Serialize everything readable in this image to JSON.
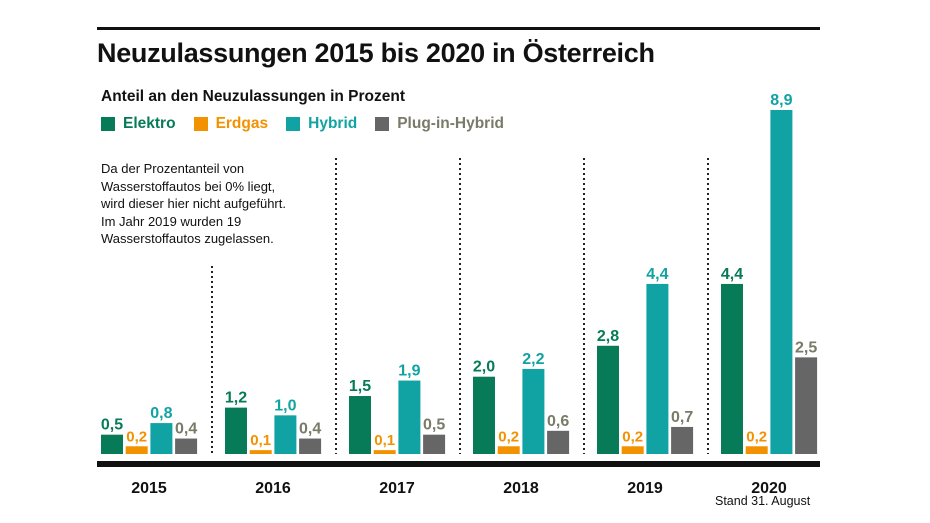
{
  "title": "Neuzulassungen 2015 bis 2020 in Österreich",
  "subtitle": "Anteil an den Neuzulassungen in Prozent",
  "note": [
    "Da der Prozentanteil von",
    "Wasserstoffautos bei 0% liegt,",
    "wird dieser hier nicht aufgeführt.",
    "Im Jahr 2019 wurden 19",
    "Wasserstoffautos zugelassen."
  ],
  "footnote": "Stand 31. August",
  "chart_data": {
    "type": "bar",
    "title": "Neuzulassungen 2015 bis 2020 in Österreich",
    "ylabel": "Anteil an den Neuzulassungen in Prozent",
    "categories": [
      "2015",
      "2016",
      "2017",
      "2018",
      "2019",
      "2020"
    ],
    "ylim": [
      0,
      8.9
    ],
    "grid": false,
    "legend": "top-left",
    "series": [
      {
        "name": "Elektro",
        "color": "#077a58",
        "label_color": "#077a58",
        "values": [
          0.5,
          1.2,
          1.5,
          2.0,
          2.8,
          4.4
        ]
      },
      {
        "name": "Erdgas",
        "color": "#f39200",
        "label_color": "#f39200",
        "values": [
          0.2,
          0.1,
          0.1,
          0.2,
          0.2,
          0.2
        ]
      },
      {
        "name": "Hybrid",
        "color": "#11a3a3",
        "label_color": "#11a3a3",
        "values": [
          0.8,
          1.0,
          1.9,
          2.2,
          4.4,
          8.9
        ]
      },
      {
        "name": "Plug-in-Hybrid",
        "color": "#666666",
        "label_color": "#7a7a68",
        "values": [
          0.4,
          0.4,
          0.5,
          0.6,
          0.7,
          2.5
        ]
      }
    ]
  }
}
